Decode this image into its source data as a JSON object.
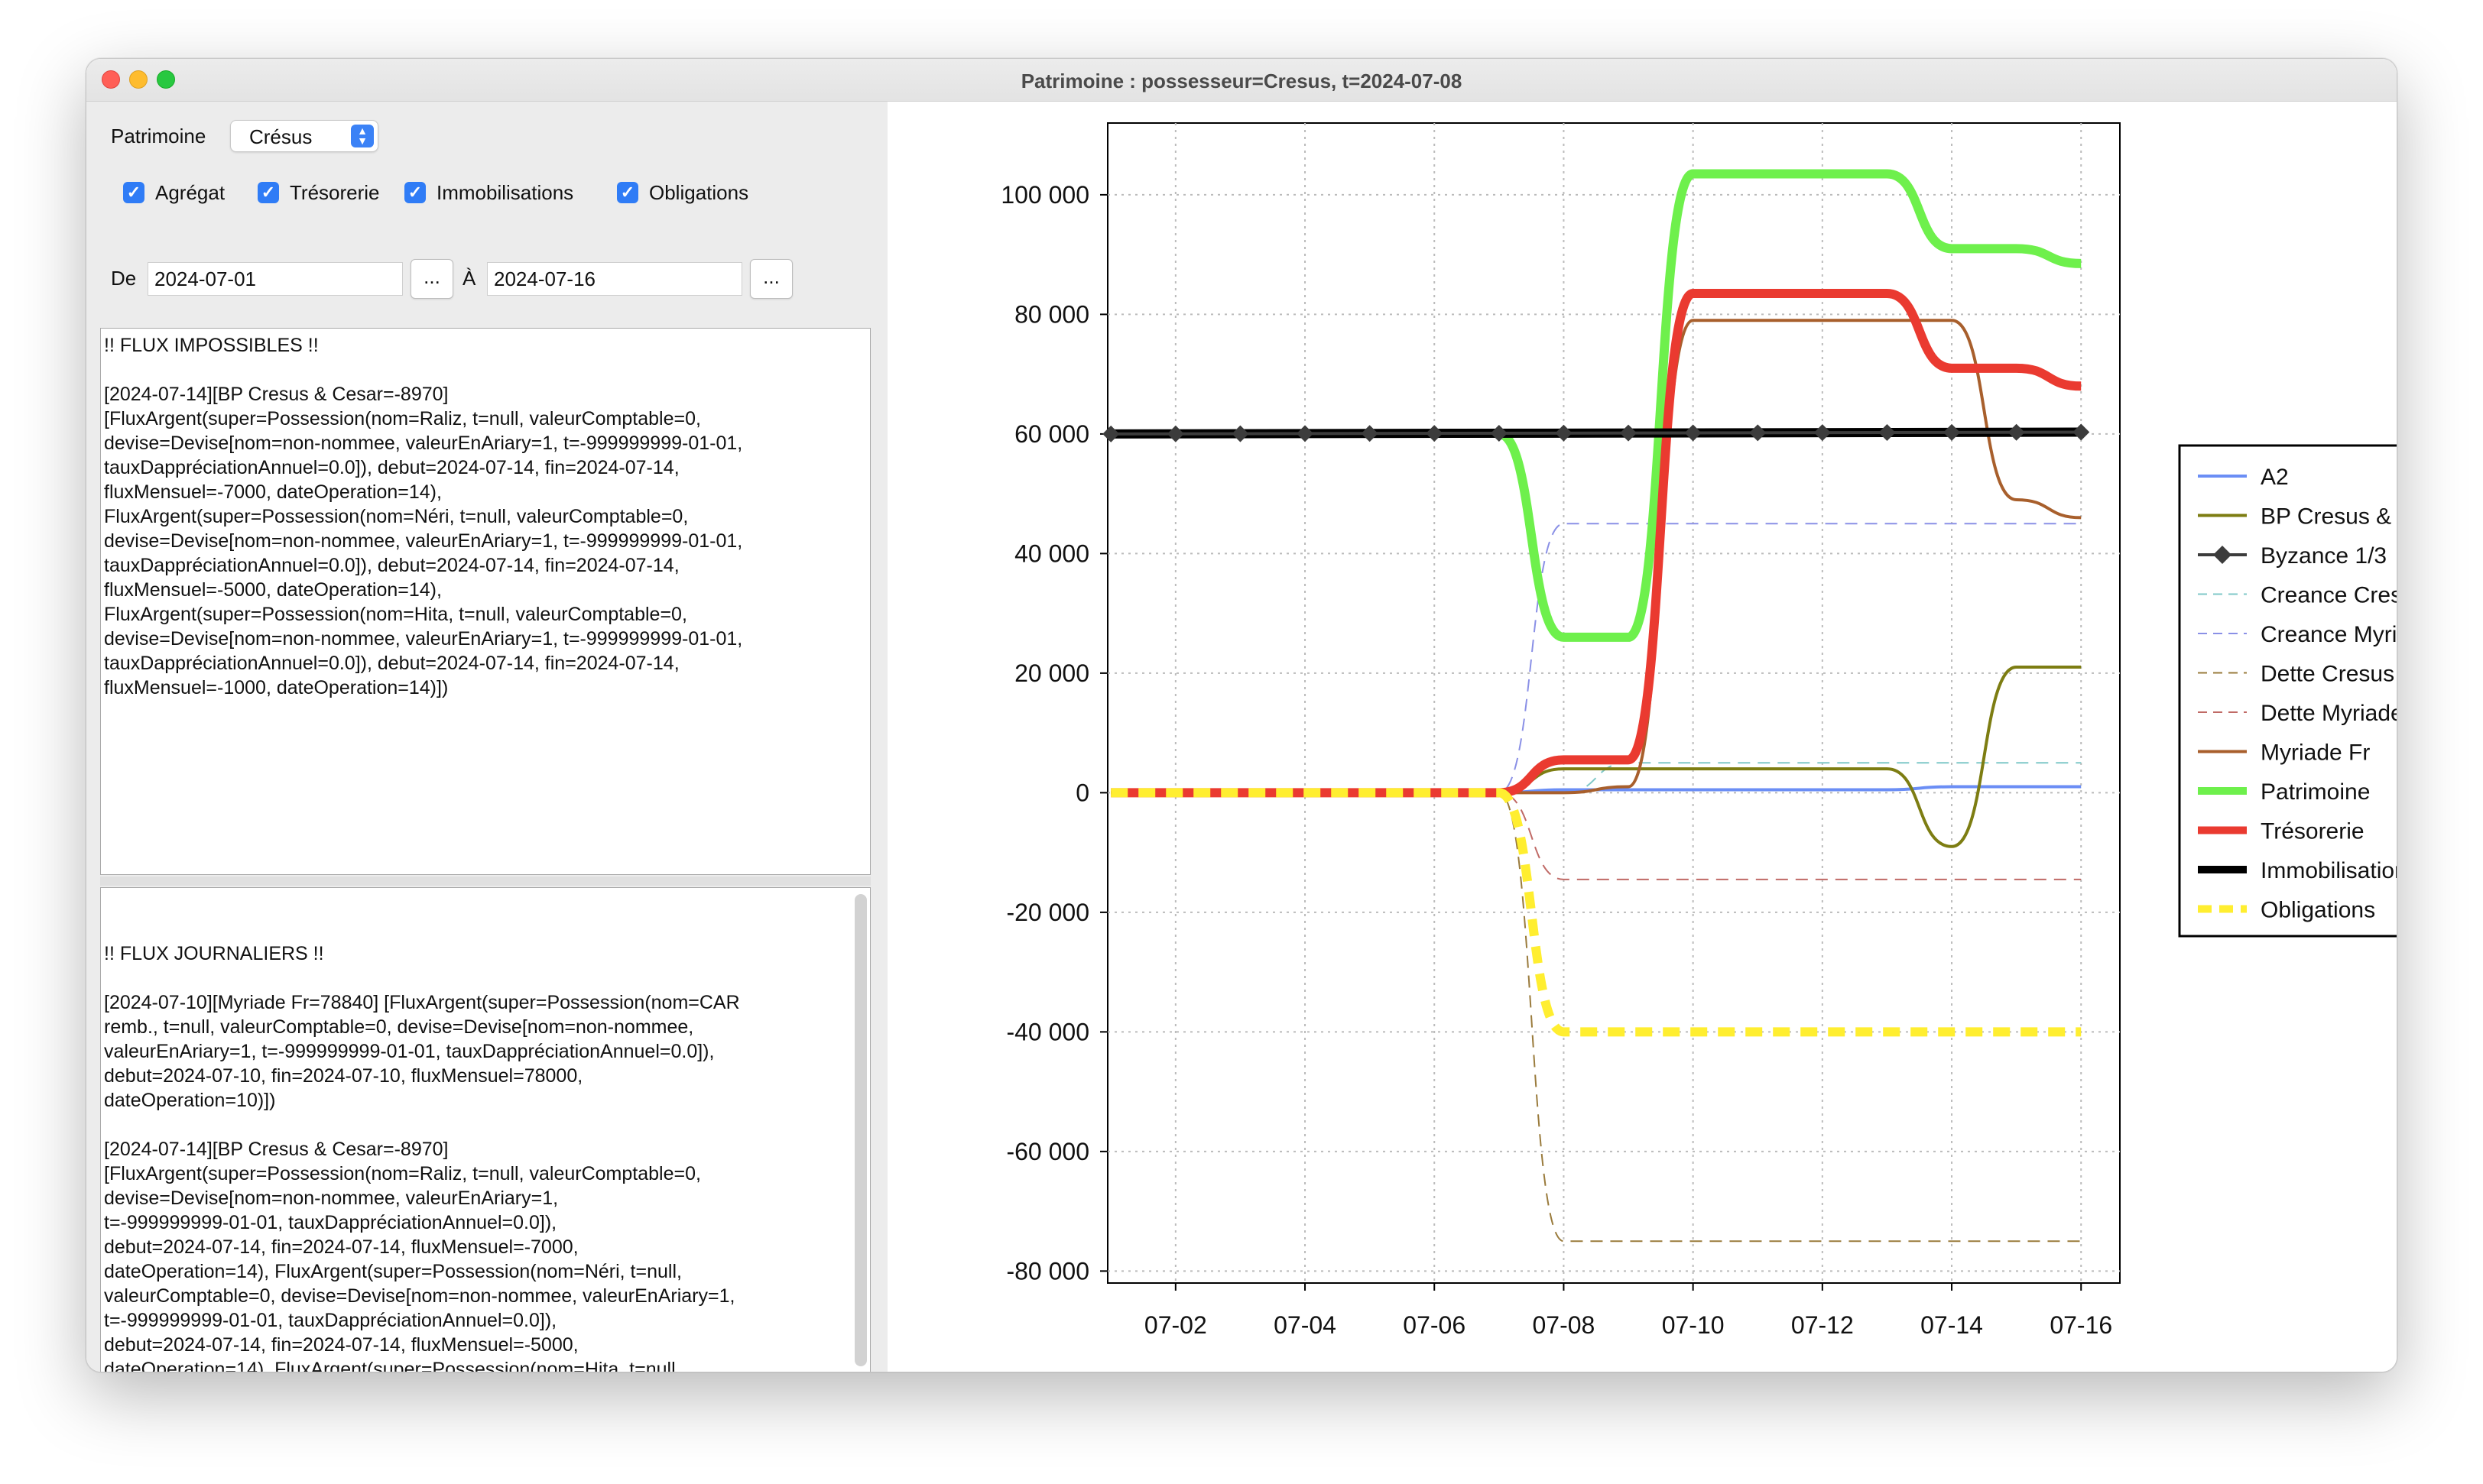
{
  "window": {
    "title": "Patrimoine : possesseur=Cresus, t=2024-07-08"
  },
  "controls": {
    "patrimoine_label": "Patrimoine",
    "patrimoine_value": "Crésus",
    "checkboxes": [
      {
        "label": "Agrégat",
        "checked": true
      },
      {
        "label": "Trésorerie",
        "checked": true
      },
      {
        "label": "Immobilisations",
        "checked": true
      },
      {
        "label": "Obligations",
        "checked": true
      }
    ],
    "de_label": "De",
    "date_from": "2024-07-01",
    "a_label": "À",
    "date_to": "2024-07-16",
    "dots": "..."
  },
  "flux_impossibles": "!! FLUX IMPOSSIBLES !!\n\n[2024-07-14][BP Cresus & Cesar=-8970]\n[FluxArgent(super=Possession(nom=Raliz, t=null, valeurComptable=0,\ndevise=Devise[nom=non-nommee, valeurEnAriary=1, t=-999999999-01-01,\ntauxDappréciationAnnuel=0.0]), debut=2024-07-14, fin=2024-07-14,\nfluxMensuel=-7000, dateOperation=14),\nFluxArgent(super=Possession(nom=Néri, t=null, valeurComptable=0,\ndevise=Devise[nom=non-nommee, valeurEnAriary=1, t=-999999999-01-01,\ntauxDappréciationAnnuel=0.0]), debut=2024-07-14, fin=2024-07-14,\nfluxMensuel=-5000, dateOperation=14),\nFluxArgent(super=Possession(nom=Hita, t=null, valeurComptable=0,\ndevise=Devise[nom=non-nommee, valeurEnAriary=1, t=-999999999-01-01,\ntauxDappréciationAnnuel=0.0]), debut=2024-07-14, fin=2024-07-14,\nfluxMensuel=-1000, dateOperation=14)])",
  "flux_journaliers": "!! FLUX JOURNALIERS !!\n\n[2024-07-10][Myriade Fr=78840] [FluxArgent(super=Possession(nom=CAR\nremb., t=null, valeurComptable=0, devise=Devise[nom=non-nommee,\nvaleurEnAriary=1, t=-999999999-01-01, tauxDappréciationAnnuel=0.0]),\ndebut=2024-07-10, fin=2024-07-10, fluxMensuel=78000,\ndateOperation=10)])\n\n[2024-07-14][BP Cresus & Cesar=-8970]\n[FluxArgent(super=Possession(nom=Raliz, t=null, valeurComptable=0,\ndevise=Devise[nom=non-nommee, valeurEnAriary=1,\nt=-999999999-01-01, tauxDappréciationAnnuel=0.0]),\ndebut=2024-07-14, fin=2024-07-14, fluxMensuel=-7000,\ndateOperation=14), FluxArgent(super=Possession(nom=Néri, t=null,\nvaleurComptable=0, devise=Devise[nom=non-nommee, valeurEnAriary=1,\nt=-999999999-01-01, tauxDappréciationAnnuel=0.0]),\ndebut=2024-07-14, fin=2024-07-14, fluxMensuel=-5000,\ndateOperation=14), FluxArgent(super=Possession(nom=Hita, t=null,\nvaleurComptable=0, devise=Devise[nom=non-nommee, valeurEnAriary=1,\nt=-999999999-01-01, tauxDappréciationAnnuel=0.0]),\ndebut=2024-07-14, fin=2024-07-14, fluxMensuel=-1000,\ndateOperation=14)])",
  "chart_data": {
    "type": "line",
    "title": "",
    "xlabel": "",
    "ylabel": "",
    "x_ticks": [
      "07-02",
      "07-04",
      "07-06",
      "07-08",
      "07-10",
      "07-12",
      "07-14",
      "07-16"
    ],
    "y_ticks": [
      "100 000",
      "80 000",
      "60 000",
      "40 000",
      "20 000",
      "0",
      "-20 000",
      "-40 000",
      "-60 000",
      "-80 000"
    ],
    "xlim": [
      "2024-07-01",
      "2024-07-16"
    ],
    "ylim": [
      -82000,
      112000
    ],
    "grid": true,
    "legend_position": "right",
    "series": [
      {
        "name": "A2",
        "color": "#6b8ef5",
        "style": "solid",
        "points": [
          [
            "2024-07-01",
            0
          ],
          [
            "2024-07-07",
            0
          ],
          [
            "2024-07-08",
            500
          ],
          [
            "2024-07-13",
            500
          ],
          [
            "2024-07-14",
            1000
          ],
          [
            "2024-07-16",
            1000
          ]
        ]
      },
      {
        "name": "BP Cresus & Cesar",
        "color": "#7d7d12",
        "style": "solid",
        "points": [
          [
            "2024-07-01",
            0
          ],
          [
            "2024-07-07",
            0
          ],
          [
            "2024-07-08",
            4000
          ],
          [
            "2024-07-13",
            4000
          ],
          [
            "2024-07-14",
            -9000
          ],
          [
            "2024-07-15",
            21000
          ],
          [
            "2024-07-16",
            21000
          ]
        ]
      },
      {
        "name": "Byzance 1/3",
        "color": "#3c3c3c",
        "style": "diamond",
        "points": [
          [
            "2024-07-01",
            60000
          ],
          [
            "2024-07-16",
            60300
          ]
        ]
      },
      {
        "name": "Creance Cresus",
        "color": "#7fc8c8",
        "style": "dashed",
        "points": [
          [
            "2024-07-01",
            0
          ],
          [
            "2024-07-08",
            0
          ],
          [
            "2024-07-09",
            5000
          ],
          [
            "2024-07-16",
            5000
          ]
        ]
      },
      {
        "name": "Creance Myriade Fr",
        "color": "#8a90e6",
        "style": "dashed",
        "points": [
          [
            "2024-07-01",
            0
          ],
          [
            "2024-07-07",
            0
          ],
          [
            "2024-07-08",
            45000
          ],
          [
            "2024-07-16",
            45000
          ]
        ]
      },
      {
        "name": "Dette Cresus",
        "color": "#9a7b3c",
        "style": "dashed",
        "points": [
          [
            "2024-07-01",
            0
          ],
          [
            "2024-07-07",
            0
          ],
          [
            "2024-07-08",
            -75000
          ],
          [
            "2024-07-16",
            -75000
          ]
        ]
      },
      {
        "name": "Dette Myriade Fr",
        "color": "#c06a66",
        "style": "dashed",
        "points": [
          [
            "2024-07-01",
            0
          ],
          [
            "2024-07-07",
            0
          ],
          [
            "2024-07-08",
            -14500
          ],
          [
            "2024-07-16",
            -14500
          ]
        ]
      },
      {
        "name": "Myriade Fr",
        "color": "#a85f2c",
        "style": "solid",
        "points": [
          [
            "2024-07-01",
            0
          ],
          [
            "2024-07-08",
            0
          ],
          [
            "2024-07-09",
            1000
          ],
          [
            "2024-07-10",
            79000
          ],
          [
            "2024-07-14",
            79000
          ],
          [
            "2024-07-15",
            49000
          ],
          [
            "2024-07-16",
            46000
          ]
        ]
      },
      {
        "name": "Patrimoine",
        "color": "#6ef04c",
        "style": "solid",
        "points": [
          [
            "2024-07-07",
            60000
          ],
          [
            "2024-07-08",
            26000
          ],
          [
            "2024-07-09",
            26000
          ],
          [
            "2024-07-10",
            103500
          ],
          [
            "2024-07-13",
            103500
          ],
          [
            "2024-07-14",
            91000
          ],
          [
            "2024-07-15",
            91000
          ],
          [
            "2024-07-16",
            88500
          ]
        ]
      },
      {
        "name": "Trésorerie",
        "color": "#ea3a30",
        "style": "solid",
        "points": [
          [
            "2024-07-01",
            0
          ],
          [
            "2024-07-07",
            0
          ],
          [
            "2024-07-08",
            5500
          ],
          [
            "2024-07-09",
            5500
          ],
          [
            "2024-07-10",
            83500
          ],
          [
            "2024-07-13",
            83500
          ],
          [
            "2024-07-14",
            71000
          ],
          [
            "2024-07-15",
            71000
          ],
          [
            "2024-07-16",
            68000
          ]
        ]
      },
      {
        "name": "Immobilisations",
        "color": "#000000",
        "style": "solid",
        "points": [
          [
            "2024-07-01",
            60000
          ],
          [
            "2024-07-16",
            60300
          ]
        ]
      },
      {
        "name": "Obligations",
        "color": "#ffee30",
        "style": "dashed",
        "points": [
          [
            "2024-07-01",
            0
          ],
          [
            "2024-07-07",
            0
          ],
          [
            "2024-07-08",
            -40000
          ],
          [
            "2024-07-16",
            -40000
          ]
        ]
      }
    ]
  }
}
